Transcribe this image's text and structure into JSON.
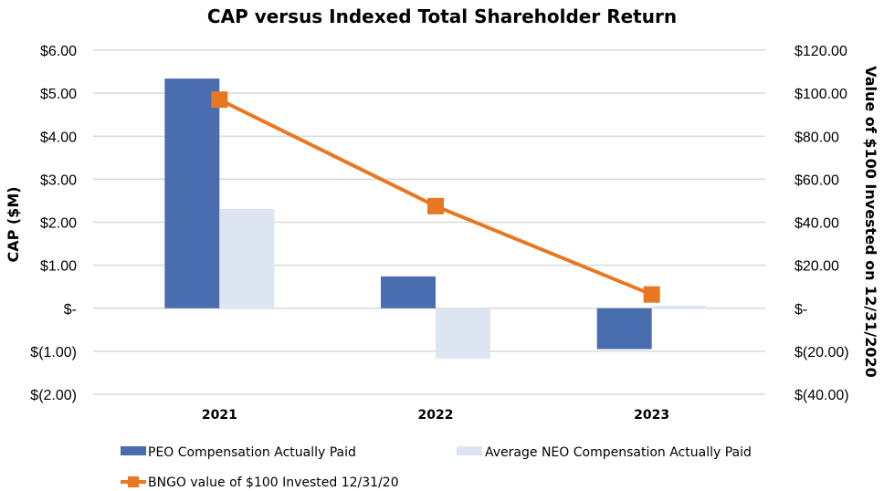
{
  "chart_data": {
    "type": "bar",
    "title": "CAP versus Indexed Total Shareholder Return",
    "categories": [
      "2021",
      "2022",
      "2023"
    ],
    "xlabel": "",
    "ylabel": "CAP ($M)",
    "y2label": "Value of $100 Invested on 12/31/2020",
    "ylim": [
      -2,
      6
    ],
    "y2lim": [
      -40,
      120
    ],
    "yticks": [
      "$(2.00)",
      "$(1.00)",
      "$-",
      "$1.00",
      "$2.00",
      "$3.00",
      "$4.00",
      "$5.00",
      "$6.00"
    ],
    "yticks_values": [
      -2,
      -1,
      0,
      1,
      2,
      3,
      4,
      5,
      6
    ],
    "y2ticks": [
      "$(40.00)",
      "$(20.00)",
      "$-",
      "$20.00",
      "$40.00",
      "$60.00",
      "$80.00",
      "$100.00",
      "$120.00"
    ],
    "y2ticks_values": [
      -40,
      -20,
      0,
      20,
      40,
      60,
      80,
      100,
      120
    ],
    "grid": true,
    "legend_position": "bottom",
    "series": [
      {
        "name": "PEO Compensation Actually Paid",
        "type": "bar",
        "axis": "left",
        "color": "#4a6db0",
        "values": [
          5.34,
          0.74,
          -0.95
        ]
      },
      {
        "name": "Average NEO Compensation Actually Paid",
        "type": "bar",
        "axis": "left",
        "color": "#dde5f3",
        "values": [
          2.31,
          -1.17,
          0.06
        ]
      },
      {
        "name": "BNGO value of $100 Invested 12/31/20",
        "type": "line",
        "axis": "right",
        "color": "#e87722",
        "marker": "square",
        "values": [
          97,
          47.5,
          6.4
        ]
      }
    ]
  }
}
